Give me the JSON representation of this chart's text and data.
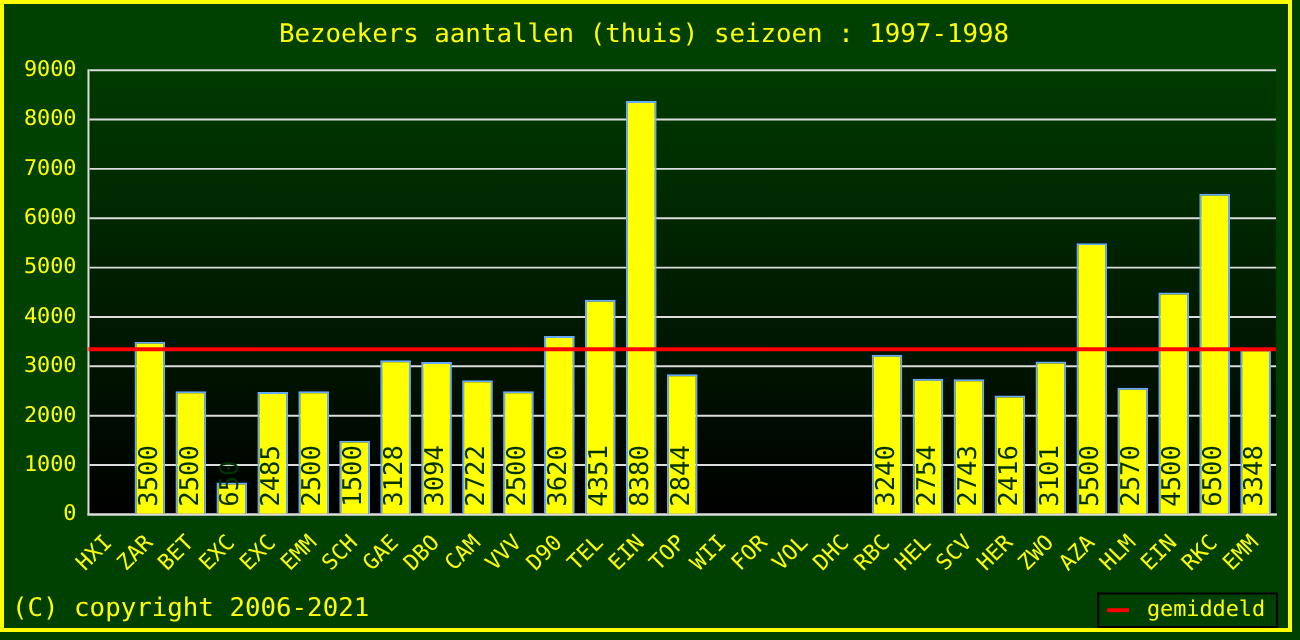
{
  "chart_data": {
    "type": "bar",
    "title": "Bezoekers aantallen (thuis) seizoen : 1997-1998",
    "categories": [
      "HXI",
      "ZAR",
      "BET",
      "EXC",
      "EXC",
      "EMM",
      "SCH",
      "GAE",
      "DBO",
      "CAM",
      "VVV",
      "D90",
      "TEL",
      "EIN",
      "TOP",
      "WII",
      "FOR",
      "VOL",
      "DHC",
      "RBC",
      "HEL",
      "SCV",
      "HER",
      "ZWO",
      "AZA",
      "HLM",
      "EIN",
      "RKC",
      "EMM"
    ],
    "values": [
      null,
      3500,
      2500,
      650,
      2485,
      2500,
      1500,
      3128,
      3094,
      2722,
      2500,
      3620,
      4351,
      8380,
      2844,
      null,
      null,
      null,
      null,
      3240,
      2754,
      2743,
      2416,
      3101,
      5500,
      2570,
      4500,
      6500,
      3348
    ],
    "color": "#ffff00",
    "ylim": [
      0,
      9000
    ],
    "yticks": [
      0,
      1000,
      2000,
      3000,
      4000,
      5000,
      6000,
      7000,
      8000,
      9000
    ],
    "grid": "y",
    "data_labels": true,
    "legend": "bottom right",
    "ref_lines": [
      {
        "axis": "y",
        "value": 3350,
        "label": "gemiddeld",
        "color": "#ff0000"
      }
    ],
    "annotations": [
      "(C) copyright 2006-2021"
    ]
  }
}
